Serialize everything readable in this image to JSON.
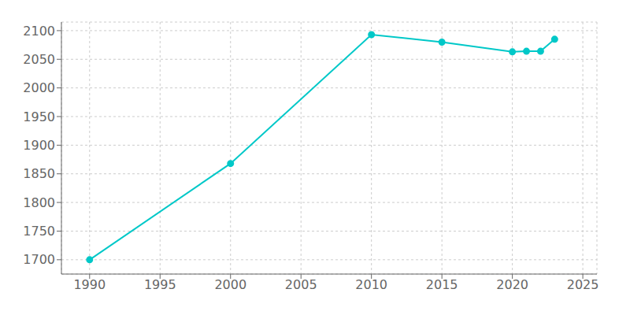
{
  "chart_data": {
    "type": "line",
    "x": [
      1990,
      2000,
      2010,
      2015,
      2020,
      2021,
      2022,
      2023
    ],
    "values": [
      1700,
      1868,
      2093,
      2080,
      2063,
      2064,
      2064,
      2085
    ],
    "color": "#00c8c8",
    "marker": "circle",
    "xlim": [
      1988,
      2026
    ],
    "ylim": [
      1675,
      2115
    ],
    "xticks": [
      1990,
      1995,
      2000,
      2005,
      2010,
      2015,
      2020,
      2025
    ],
    "yticks": [
      1700,
      1750,
      1800,
      1850,
      1900,
      1950,
      2000,
      2050,
      2100
    ],
    "grid": true
  }
}
